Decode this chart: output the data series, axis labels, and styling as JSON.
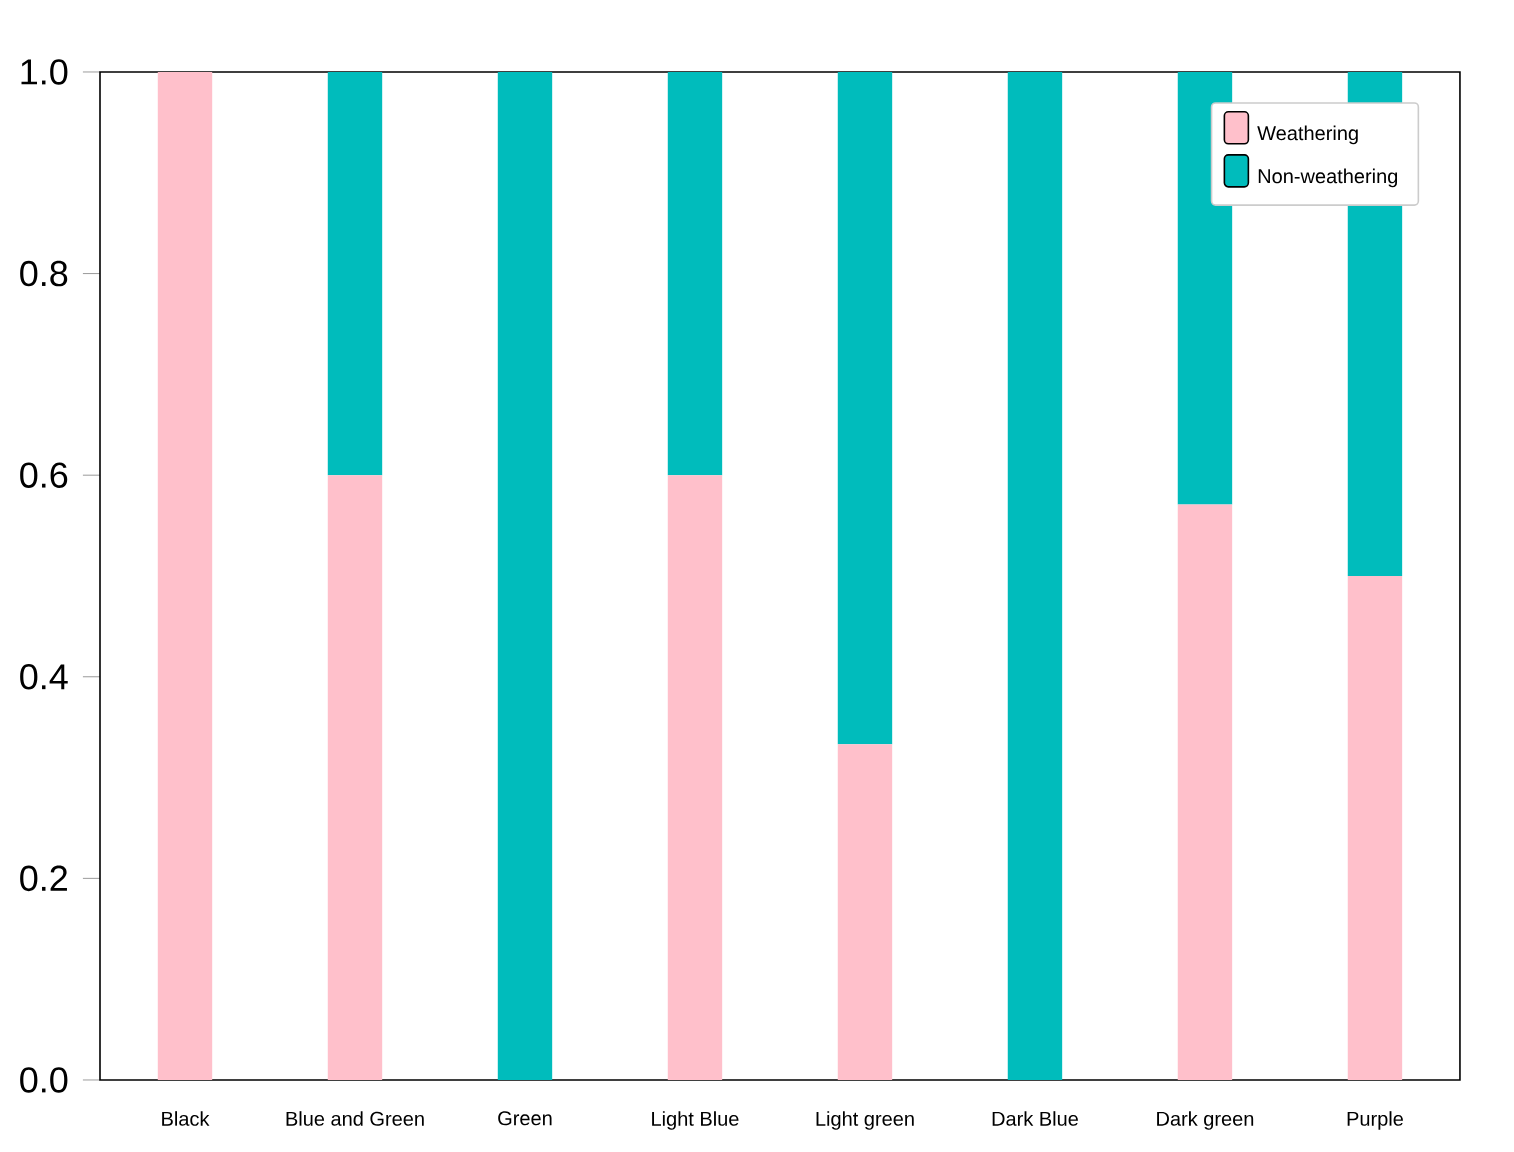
{
  "chart_data": {
    "type": "bar",
    "stacked": true,
    "categories": [
      "Black",
      "Blue and Green",
      "Green",
      "Light Blue",
      "Light green",
      "Dark Blue",
      "Dark green",
      "Purple"
    ],
    "series": [
      {
        "name": "Weathering",
        "color": "#ffc0cb",
        "values": [
          1,
          0.6,
          0,
          0.6,
          0.333,
          0,
          0.571,
          0.5
        ]
      },
      {
        "name": "Non-weathering",
        "color": "#00bcbc",
        "values": [
          0,
          0.4,
          1,
          0.4,
          0.667,
          1,
          0.429,
          0.5
        ]
      }
    ],
    "ylim": [
      0,
      1
    ],
    "yticks": [
      {
        "value": 0,
        "label": "0.0"
      },
      0.2,
      0.4,
      0.6,
      0.8,
      {
        "value": 1,
        "label": "1.0"
      }
    ],
    "legend": "top right"
  }
}
